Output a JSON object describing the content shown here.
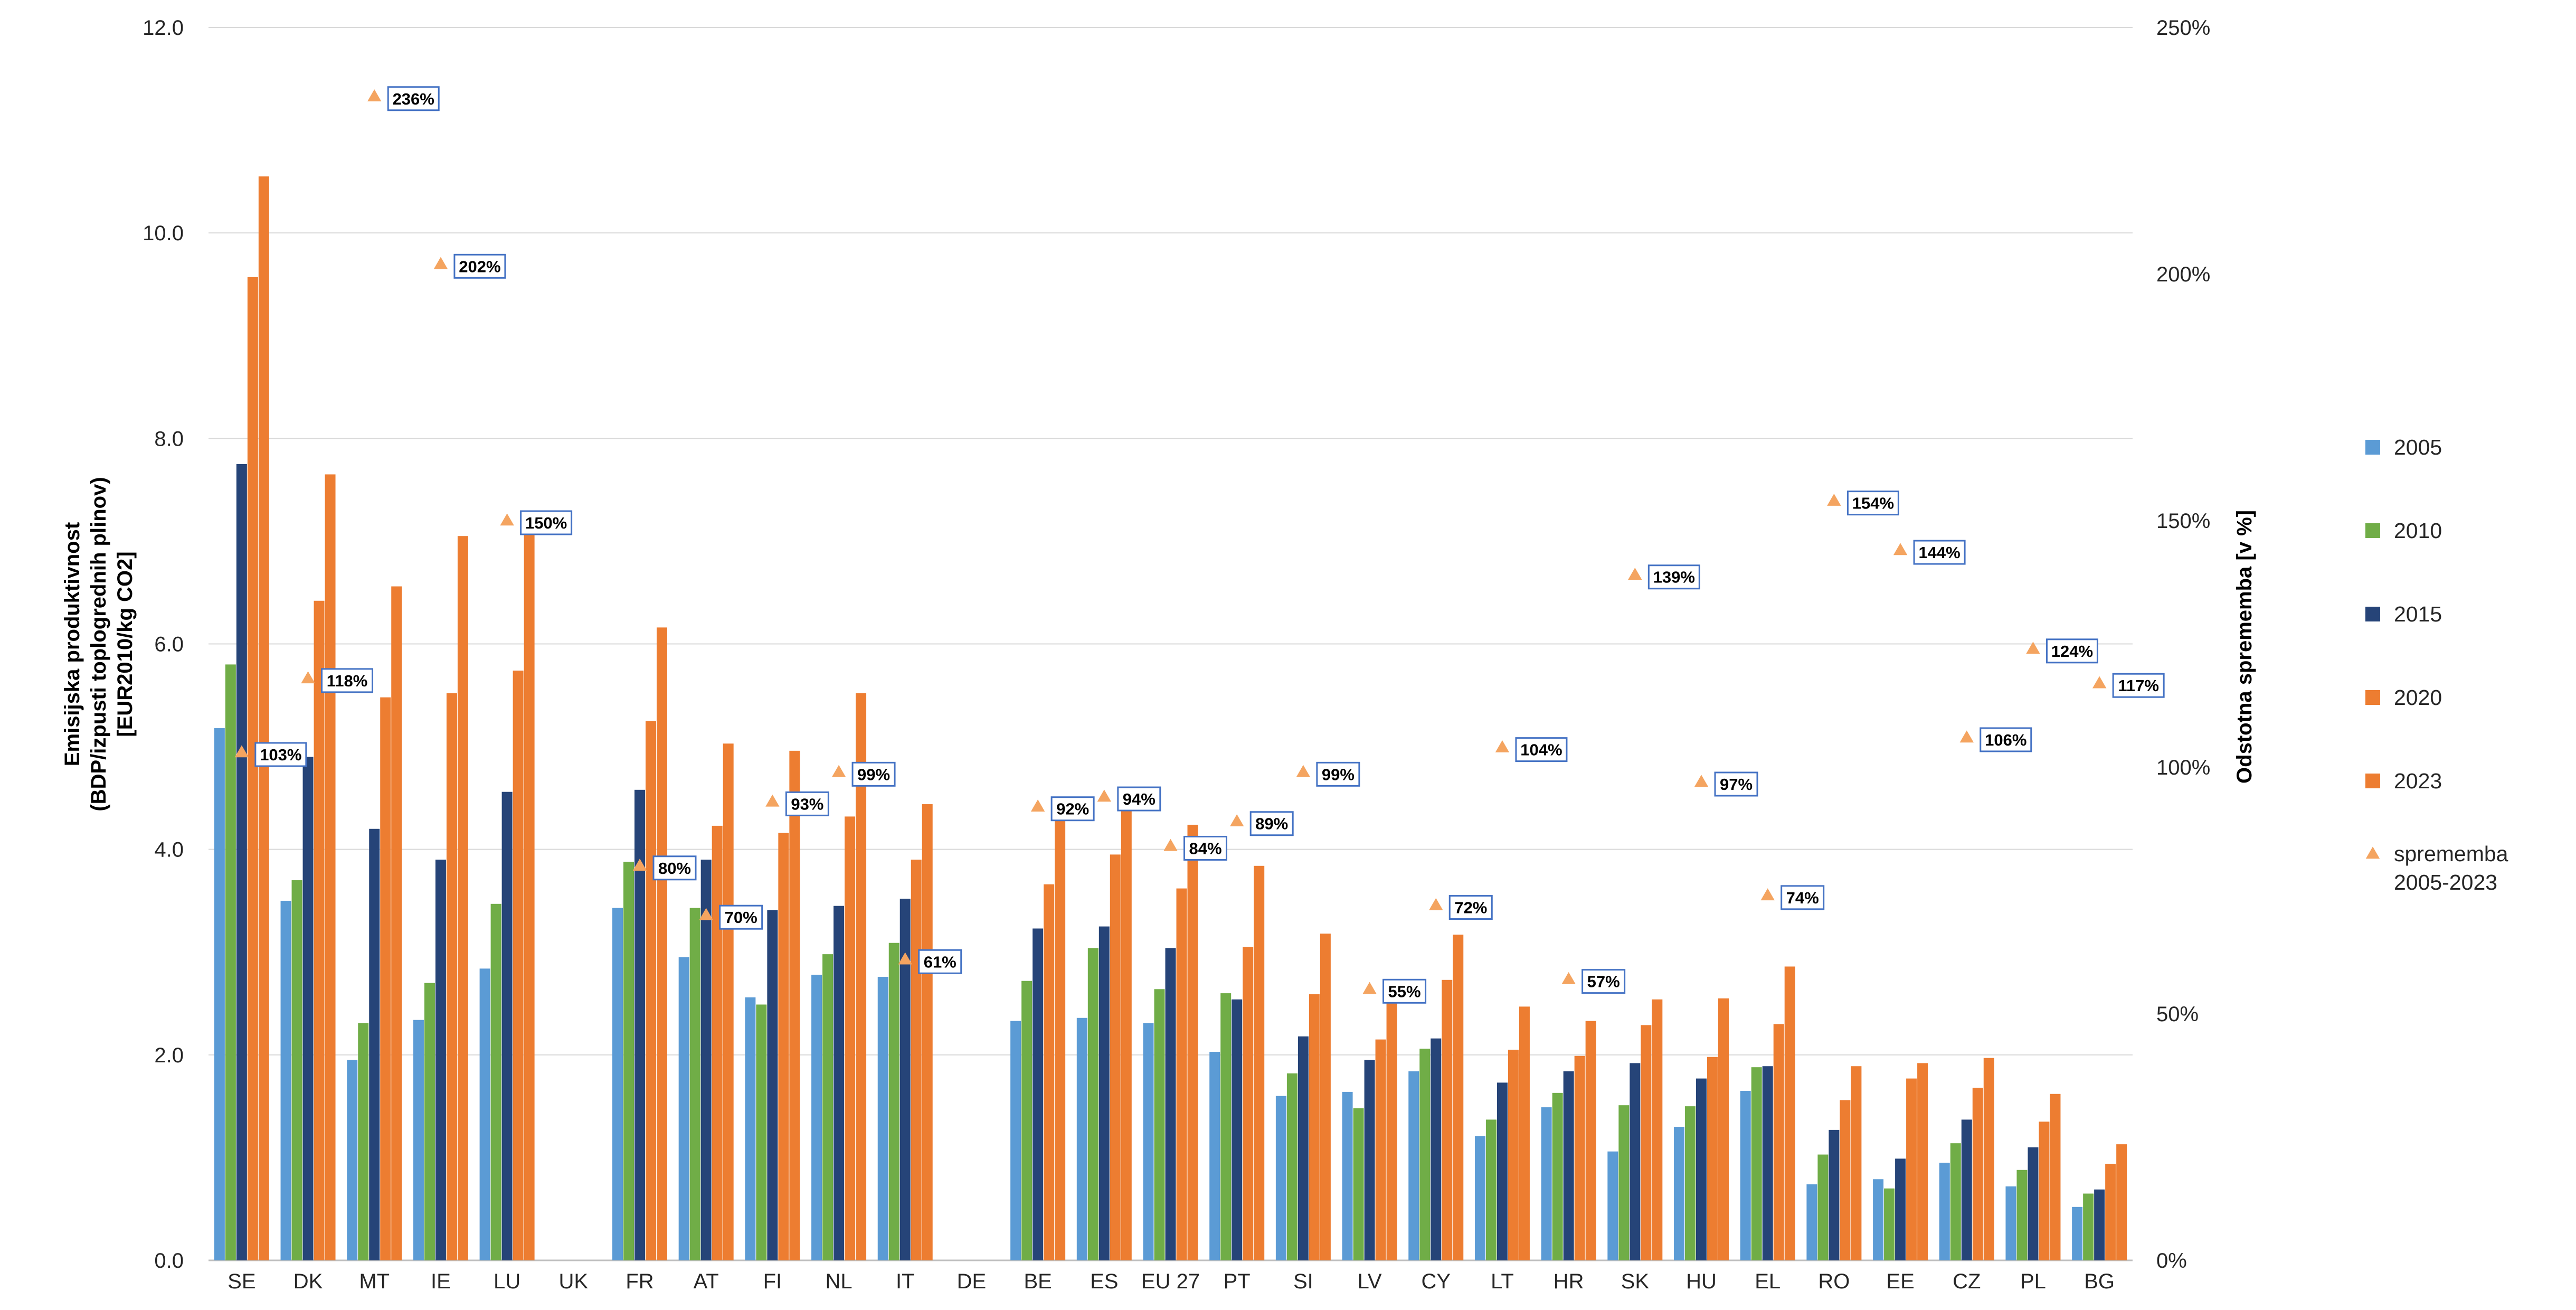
{
  "colors": {
    "s2005": "#5b9bd5",
    "s2010": "#70ad47",
    "s2015": "#264478",
    "s2020": "#ed7d31",
    "s2023": "#ed7d31",
    "change": "#f4a460",
    "labelBox": "#4472c4",
    "grid": "#d9d9d9"
  },
  "chart_data": {
    "type": "bar",
    "ylabel_lines": [
      "Emisijska produktivnost",
      "(BDP/izpusti toplogrednih plinov)",
      "[EUR2010/kg CO2]"
    ],
    "y2label": "Odstotna sprememba [v %]",
    "ylim": [
      0,
      12
    ],
    "y2lim": [
      0,
      250
    ],
    "yticks": [
      "0.0",
      "2.0",
      "4.0",
      "6.0",
      "8.0",
      "10.0",
      "12.0"
    ],
    "y2ticks": [
      "0%",
      "50%",
      "100%",
      "150%",
      "200%",
      "250%"
    ],
    "grid": true,
    "legend_position": "right",
    "categories": [
      "SE",
      "DK",
      "MT",
      "IE",
      "LU",
      "UK",
      "FR",
      "AT",
      "FI",
      "NL",
      "IT",
      "DE",
      "BE",
      "ES",
      "EU 27",
      "PT",
      "SI",
      "LV",
      "CY",
      "LT",
      "HR",
      "SK",
      "HU",
      "EL",
      "RO",
      "EE",
      "CZ",
      "PL",
      "BG"
    ],
    "series": [
      {
        "name": "2005",
        "color_key": "s2005",
        "values": [
          5.18,
          3.5,
          1.95,
          2.34,
          2.84,
          null,
          3.43,
          2.95,
          2.56,
          2.78,
          2.76,
          null,
          2.33,
          2.36,
          2.31,
          2.03,
          1.6,
          1.64,
          1.84,
          1.21,
          1.49,
          1.06,
          1.3,
          1.65,
          0.74,
          0.79,
          0.95,
          0.72,
          0.52
        ]
      },
      {
        "name": "2010",
        "color_key": "s2010",
        "values": [
          5.8,
          3.7,
          2.31,
          2.7,
          3.47,
          null,
          3.88,
          3.43,
          2.49,
          2.98,
          3.09,
          null,
          2.72,
          3.04,
          2.64,
          2.6,
          1.82,
          1.48,
          2.06,
          1.37,
          1.63,
          1.51,
          1.5,
          1.88,
          1.03,
          0.7,
          1.14,
          0.88,
          0.65
        ]
      },
      {
        "name": "2015",
        "color_key": "s2015",
        "values": [
          7.75,
          4.9,
          4.2,
          3.9,
          4.56,
          null,
          4.58,
          3.9,
          3.41,
          3.45,
          3.52,
          null,
          3.23,
          3.25,
          3.04,
          2.54,
          2.18,
          1.95,
          2.16,
          1.73,
          1.84,
          1.92,
          1.77,
          1.89,
          1.27,
          0.99,
          1.37,
          1.1,
          0.69
        ]
      },
      {
        "name": "2020",
        "color_key": "s2020",
        "values": [
          9.57,
          6.42,
          5.48,
          5.52,
          5.74,
          null,
          5.25,
          4.23,
          4.16,
          4.32,
          3.9,
          null,
          3.66,
          3.95,
          3.62,
          3.05,
          2.59,
          2.15,
          2.73,
          2.05,
          1.99,
          2.29,
          1.98,
          2.3,
          1.56,
          1.77,
          1.68,
          1.35,
          0.94
        ]
      },
      {
        "name": "2023",
        "color_key": "s2023",
        "values": [
          10.55,
          7.65,
          6.56,
          7.05,
          7.1,
          null,
          6.16,
          5.03,
          4.96,
          5.52,
          4.44,
          null,
          4.46,
          4.52,
          4.24,
          3.84,
          3.18,
          2.55,
          3.17,
          2.47,
          2.33,
          2.54,
          2.55,
          2.86,
          1.89,
          1.92,
          1.97,
          1.62,
          1.13
        ]
      },
      {
        "name": "sprememba 2005-2023",
        "color_key": "change",
        "axis": "y2",
        "marker": "triangle",
        "values": [
          103,
          118,
          236,
          202,
          150,
          null,
          80,
          70,
          93,
          99,
          61,
          null,
          92,
          94,
          84,
          89,
          99,
          55,
          72,
          104,
          57,
          139,
          97,
          74,
          154,
          144,
          106,
          124,
          117
        ],
        "labels": [
          "103%",
          "118%",
          "236%",
          "202%",
          "150%",
          null,
          "80%",
          "70%",
          "93%",
          "99%",
          "61%",
          null,
          "92%",
          "94%",
          "84%",
          "89%",
          "99%",
          "55%",
          "72%",
          "104%",
          "57%",
          "139%",
          "97%",
          "74%",
          "154%",
          "144%",
          "106%",
          "124%",
          "117%"
        ]
      }
    ],
    "legend": [
      {
        "label": "2005",
        "color_key": "s2005",
        "marker": "square"
      },
      {
        "label": "2010",
        "color_key": "s2010",
        "marker": "square"
      },
      {
        "label": "2015",
        "color_key": "s2015",
        "marker": "square"
      },
      {
        "label": "2020",
        "color_key": "s2020",
        "marker": "square"
      },
      {
        "label": "2023",
        "color_key": "s2023",
        "marker": "square"
      },
      {
        "label_lines": [
          "sprememba",
          "2005-2023"
        ],
        "color_key": "change",
        "marker": "triangle"
      }
    ]
  }
}
